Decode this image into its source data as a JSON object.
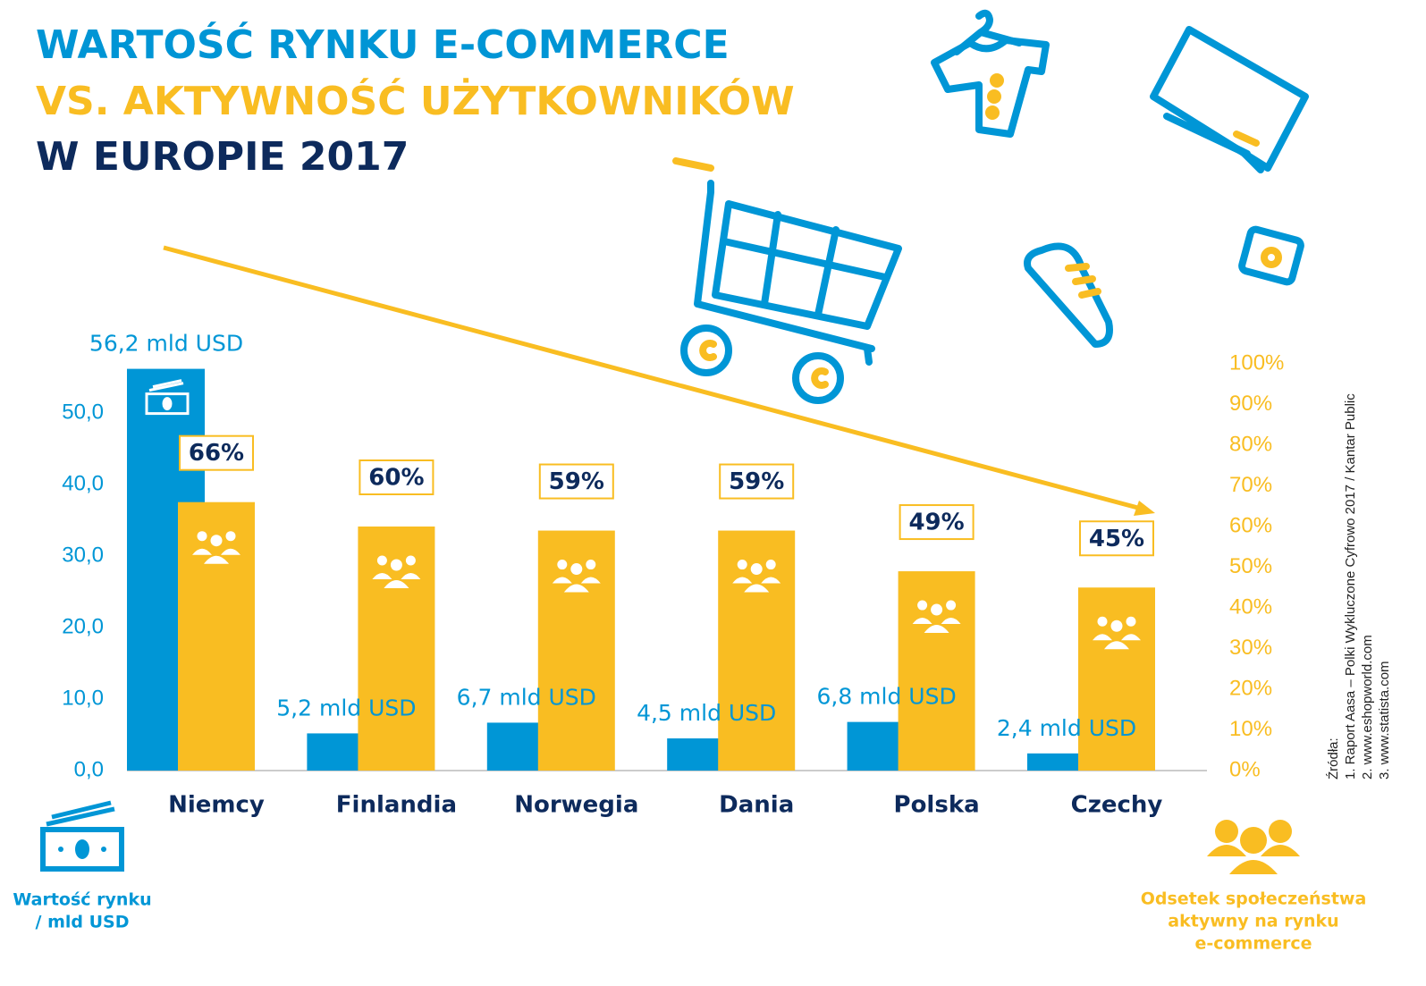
{
  "chart_data": {
    "type": "bar",
    "title": [
      "WARTOŚĆ RYNKU E-COMMERCE",
      "VS. AKTYWNOŚĆ UŻYTKOWNIKÓW",
      "W EUROPIE 2017"
    ],
    "categories": [
      "Niemcy",
      "Finlandia",
      "Norwegia",
      "Dania",
      "Polska",
      "Czechy"
    ],
    "series": [
      {
        "name": "Wartość rynku / mld USD",
        "color": "#0096d6",
        "axis": "y",
        "values": [
          56.2,
          5.2,
          6.7,
          4.5,
          6.8,
          2.4
        ],
        "value_labels": [
          "56,2 mld USD",
          "5,2 mld USD",
          "6,7 mld USD",
          "4,5 mld USD",
          "6,8 mld USD",
          "2,4 mld USD"
        ]
      },
      {
        "name": "Odsetek społeczeństwa aktywny na rynku e-commerce",
        "color": "#f9bd22",
        "axis": "y2",
        "values": [
          66,
          60,
          59,
          59,
          49,
          45
        ],
        "value_labels": [
          "66%",
          "60%",
          "59%",
          "59%",
          "49%",
          "45%"
        ]
      }
    ],
    "y_label": [
      "Wartość rynku",
      "/ mld USD"
    ],
    "y2_label": [
      "Odsetek społeczeństwa",
      "aktywny na rynku",
      "e-commerce"
    ],
    "ylim": [
      0,
      56.9
    ],
    "yticks": [
      {
        "value": 0,
        "label": "0,0"
      },
      {
        "value": 10,
        "label": "10,0"
      },
      {
        "value": 20,
        "label": "20,0"
      },
      {
        "value": 30,
        "label": "30,0"
      },
      {
        "value": 40,
        "label": "40,0"
      },
      {
        "value": 50,
        "label": "50,0"
      }
    ],
    "y2lim": [
      0,
      100
    ],
    "y2ticks": [
      {
        "value": 0,
        "label": "0%"
      },
      {
        "value": 10,
        "label": "10%"
      },
      {
        "value": 20,
        "label": "20%"
      },
      {
        "value": 30,
        "label": "30%"
      },
      {
        "value": 40,
        "label": "40%"
      },
      {
        "value": 50,
        "label": "50%"
      },
      {
        "value": 60,
        "label": "60%"
      },
      {
        "value": 70,
        "label": "70%"
      },
      {
        "value": 80,
        "label": "80%"
      },
      {
        "value": 90,
        "label": "90%"
      },
      {
        "value": 100,
        "label": "100%"
      }
    ],
    "sources": [
      "Źródła:",
      "1. Raport Aasa – Polki Wykluczone Cyfrowo 2017 / Kantar Public",
      "2. www.eshopworld.com",
      "3. www.statista.com"
    ]
  }
}
